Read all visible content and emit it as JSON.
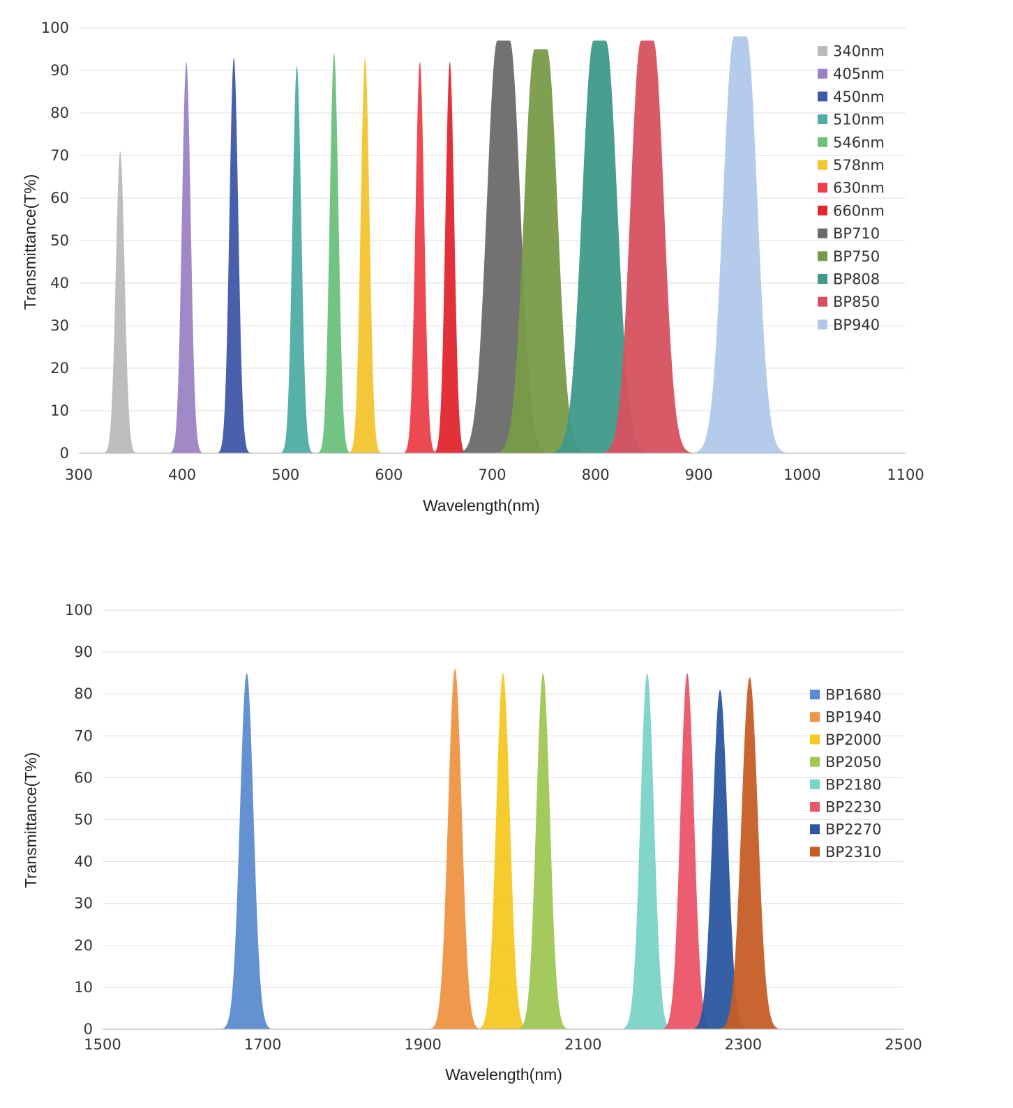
{
  "chart_data": [
    {
      "type": "area",
      "title": "",
      "xlabel": "Wavelength(nm)",
      "ylabel": "Transmittance(T%)",
      "xlim": [
        300,
        1100
      ],
      "ylim": [
        0,
        100
      ],
      "x_ticks": [
        300,
        400,
        500,
        600,
        700,
        800,
        900,
        1000,
        1100
      ],
      "y_ticks": [
        0,
        10,
        20,
        30,
        40,
        50,
        60,
        70,
        80,
        90,
        100
      ],
      "legend_position": "top-right",
      "series": [
        {
          "name": "340nm",
          "center": 340,
          "peak": 71,
          "fwhm": 10,
          "flat": 0,
          "color": "#b9b9b9"
        },
        {
          "name": "405nm",
          "center": 404,
          "peak": 92,
          "fwhm": 10,
          "flat": 0,
          "color": "#9b83c3"
        },
        {
          "name": "450nm",
          "center": 450,
          "peak": 93,
          "fwhm": 10,
          "flat": 0,
          "color": "#3e57a8"
        },
        {
          "name": "510nm",
          "center": 511,
          "peak": 91,
          "fwhm": 10,
          "flat": 0,
          "color": "#4fada3"
        },
        {
          "name": "546nm",
          "center": 547,
          "peak": 94,
          "fwhm": 10,
          "flat": 0,
          "color": "#6cc07c"
        },
        {
          "name": "578nm",
          "center": 577,
          "peak": 93,
          "fwhm": 10,
          "flat": 0,
          "color": "#f3c430"
        },
        {
          "name": "630nm",
          "center": 630,
          "peak": 92,
          "fwhm": 10,
          "flat": 0,
          "color": "#ec3f4a"
        },
        {
          "name": "660nm",
          "center": 659,
          "peak": 92,
          "fwhm": 10,
          "flat": 0,
          "color": "#e0262e"
        },
        {
          "name": "BP710",
          "center": 711,
          "peak": 97,
          "fwhm": 24,
          "flat": 12,
          "color": "#6a6a6a"
        },
        {
          "name": "BP750",
          "center": 747,
          "peak": 95,
          "fwhm": 24,
          "flat": 12,
          "color": "#789a48"
        },
        {
          "name": "BP808",
          "center": 804,
          "peak": 97,
          "fwhm": 26,
          "flat": 12,
          "color": "#3f9a89"
        },
        {
          "name": "BP850",
          "center": 850,
          "peak": 97,
          "fwhm": 24,
          "flat": 12,
          "color": "#d6515f"
        },
        {
          "name": "BP940",
          "center": 940,
          "peak": 98,
          "fwhm": 25,
          "flat": 12,
          "color": "#b0c8ea"
        }
      ]
    },
    {
      "type": "area",
      "title": "",
      "xlabel": "Wavelength(nm)",
      "ylabel": "Transmittance(T%)",
      "xlim": [
        1500,
        2500
      ],
      "ylim": [
        0,
        100
      ],
      "x_ticks": [
        1500,
        1700,
        1900,
        2100,
        2300,
        2500
      ],
      "y_ticks": [
        0,
        10,
        20,
        30,
        40,
        50,
        60,
        70,
        80,
        90,
        100
      ],
      "legend_position": "right",
      "series": [
        {
          "name": "BP1680",
          "center": 1680,
          "peak": 85,
          "fwhm": 20,
          "flat": 0,
          "color": "#5b8bd0"
        },
        {
          "name": "BP1940",
          "center": 1940,
          "peak": 86,
          "fwhm": 20,
          "flat": 0,
          "color": "#ee9443"
        },
        {
          "name": "BP2000",
          "center": 2000,
          "peak": 85,
          "fwhm": 20,
          "flat": 0,
          "color": "#f5c823"
        },
        {
          "name": "BP2050",
          "center": 2050,
          "peak": 85,
          "fwhm": 20,
          "flat": 0,
          "color": "#9fc754"
        },
        {
          "name": "BP2180",
          "center": 2180,
          "peak": 85,
          "fwhm": 20,
          "flat": 0,
          "color": "#7ad3c7"
        },
        {
          "name": "BP2230",
          "center": 2230,
          "peak": 85,
          "fwhm": 20,
          "flat": 0,
          "color": "#ec5468"
        },
        {
          "name": "BP2270",
          "center": 2271,
          "peak": 81,
          "fwhm": 22,
          "flat": 0,
          "color": "#2a57a0"
        },
        {
          "name": "BP2310",
          "center": 2308,
          "peak": 84,
          "fwhm": 24,
          "flat": 0,
          "color": "#c65d25"
        }
      ]
    }
  ]
}
